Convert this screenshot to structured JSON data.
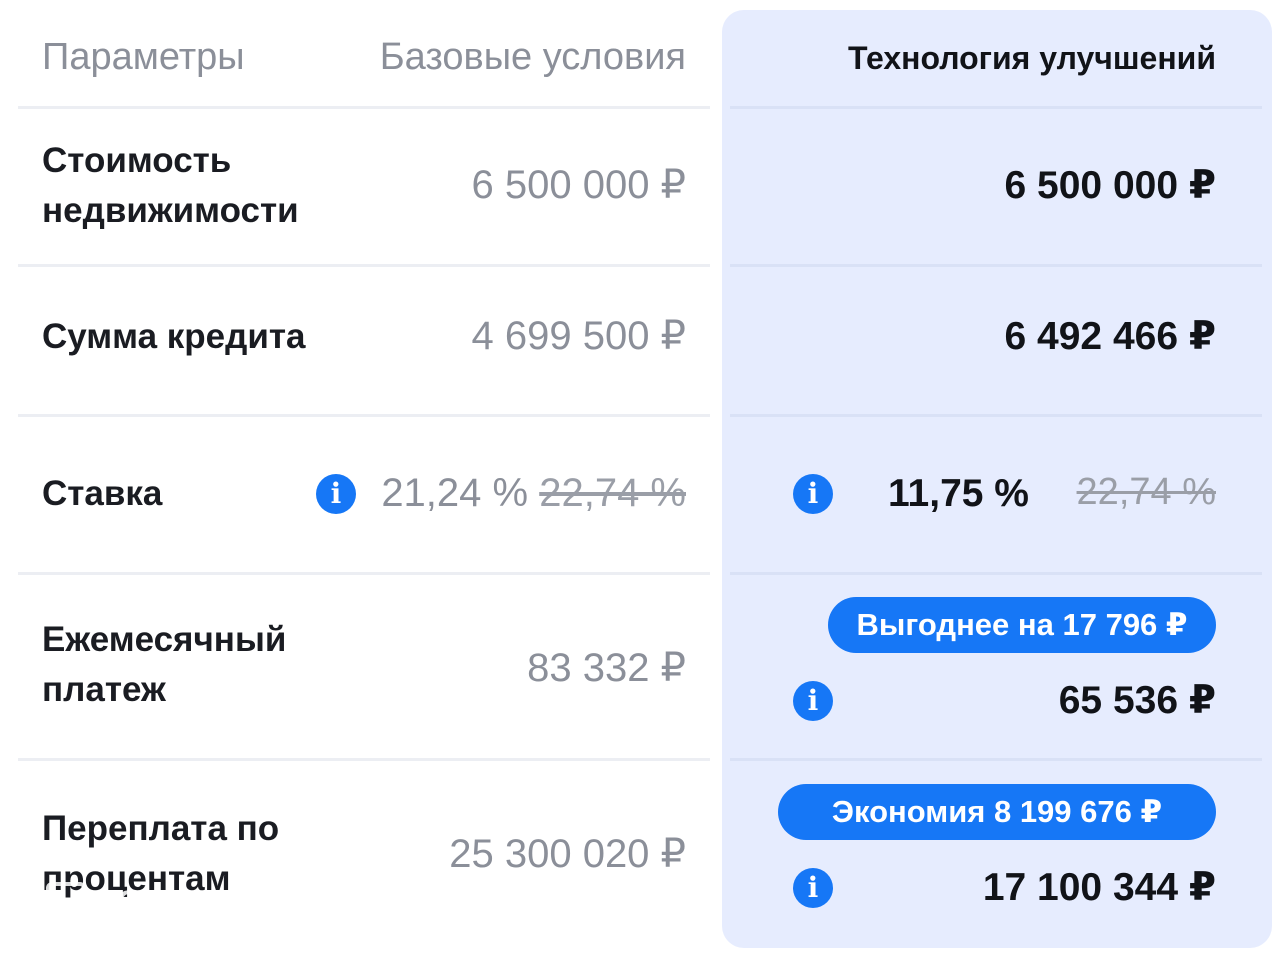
{
  "header": {
    "params_label": "Параметры",
    "base_label": "Базовые условия",
    "tech_label": "Технология улучшений"
  },
  "rows": [
    {
      "label_line1": "Стоимость",
      "label_line2": "недвижимости",
      "base_value": "6 500 000 ₽",
      "tech_value": "6 500 000 ₽"
    },
    {
      "label": "Сумма кредита",
      "base_value": "4 699 500 ₽",
      "tech_value": "6 492 466 ₽"
    },
    {
      "label": "Ставка",
      "base_value": "21,24 %",
      "base_old": "22,74 %",
      "tech_value": "11,75 %",
      "tech_old": "22,74 %"
    },
    {
      "label_line1": "Ежемесячный",
      "label_line2": "платеж",
      "base_value": "83 332 ₽",
      "tech_badge": "Выгоднее на 17 796 ₽",
      "tech_value": "65 536 ₽"
    },
    {
      "label_line1": "Переплата по",
      "label_line2": "процентам",
      "base_value": "25 300 020 ₽",
      "tech_badge": "Экономия 8 199 676 ₽",
      "tech_value": "17 100 344 ₽"
    }
  ],
  "icons": {
    "info_glyph": "i",
    "info_color": "#1677f6"
  },
  "colors": {
    "panel_bg": "#e6ecfe",
    "accent": "#1677f6",
    "muted_text": "#8b8f99",
    "strong_text": "#111318"
  },
  "watermark": {
    "center_text": "",
    "logo_text": "ДОМКЛИК"
  }
}
